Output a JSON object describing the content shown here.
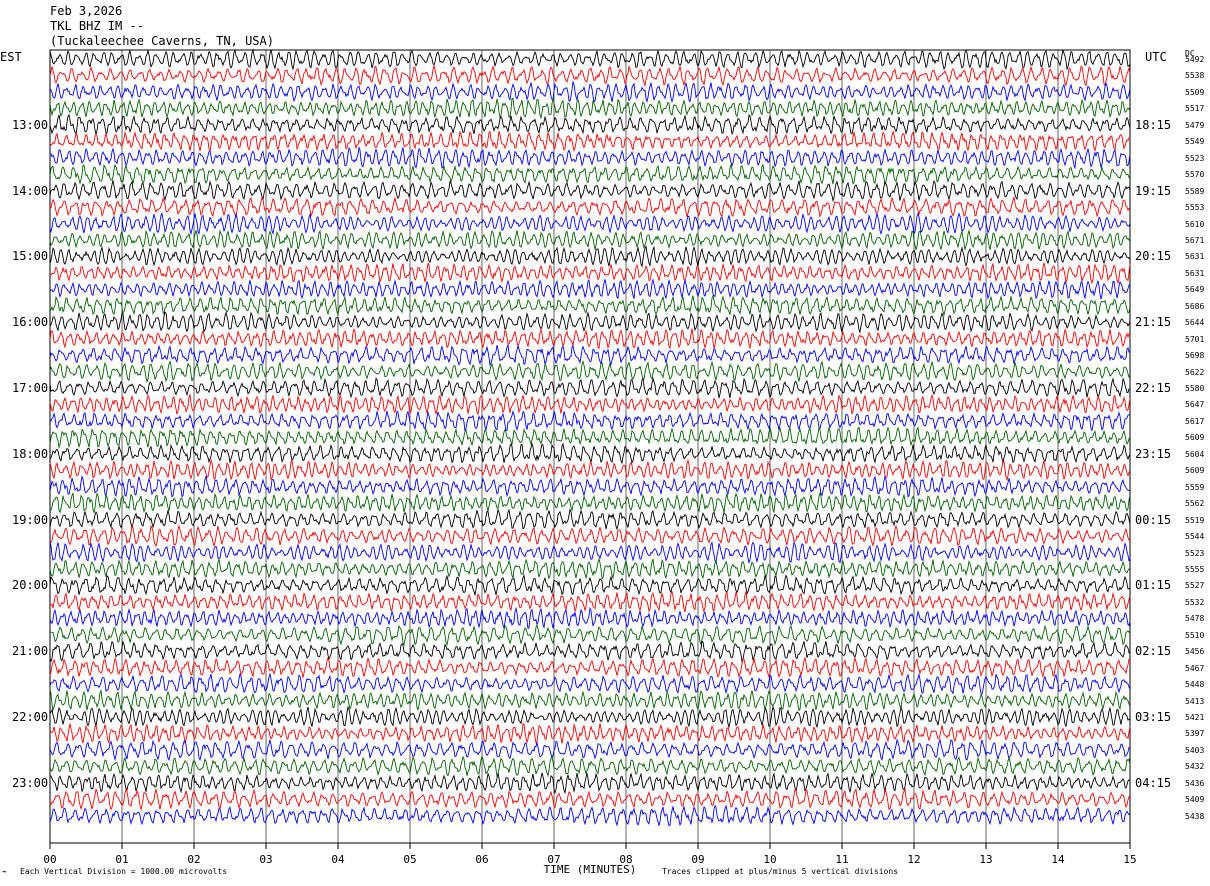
{
  "header": {
    "date": "Feb 3,2026",
    "station": "TKL BHZ IM --",
    "location": "(Tuckaleechee Caverns, TN, USA)"
  },
  "labels": {
    "left_timezone": "EST",
    "right_timezone": "UTC",
    "dc_header": "DC",
    "xlabel": "TIME (MINUTES)",
    "scale_note": "Each Vertical Division = 1000.00 microvolts",
    "clip_note": "Traces clipped at plus/minus 5 vertical divisions"
  },
  "colors": {
    "trace_cycle": [
      "#000000",
      "#ff0000",
      "#0000ff",
      "#006400"
    ]
  },
  "chart_data": {
    "type": "line",
    "xlim": [
      0,
      15
    ],
    "x_ticks": [
      "00",
      "01",
      "02",
      "03",
      "04",
      "05",
      "06",
      "07",
      "08",
      "09",
      "10",
      "11",
      "12",
      "13",
      "14",
      "15"
    ],
    "left_hour_labels": [
      "13:00",
      "14:00",
      "15:00",
      "16:00",
      "17:00",
      "18:00",
      "19:00",
      "20:00",
      "21:00",
      "22:00",
      "23:00"
    ],
    "right_hour_labels": [
      "18:15",
      "19:15",
      "20:15",
      "21:15",
      "22:15",
      "23:15",
      "00:15",
      "01:15",
      "02:15",
      "03:15",
      "04:15"
    ],
    "dc_offsets": [
      "5492",
      "5538",
      "5509",
      "5517",
      "5479",
      "5549",
      "5523",
      "5570",
      "5589",
      "5553",
      "5610",
      "5671",
      "5631",
      "5631",
      "5649",
      "5686",
      "5644",
      "5701",
      "5698",
      "5622",
      "5580",
      "5647",
      "5617",
      "5609",
      "5604",
      "5609",
      "5559",
      "5562",
      "5519",
      "5544",
      "5523",
      "5555",
      "5527",
      "5532",
      "5478",
      "5510",
      "5456",
      "5467",
      "5448",
      "5413",
      "5421",
      "5397",
      "5403",
      "5432",
      "5436",
      "5409",
      "5438"
    ]
  }
}
